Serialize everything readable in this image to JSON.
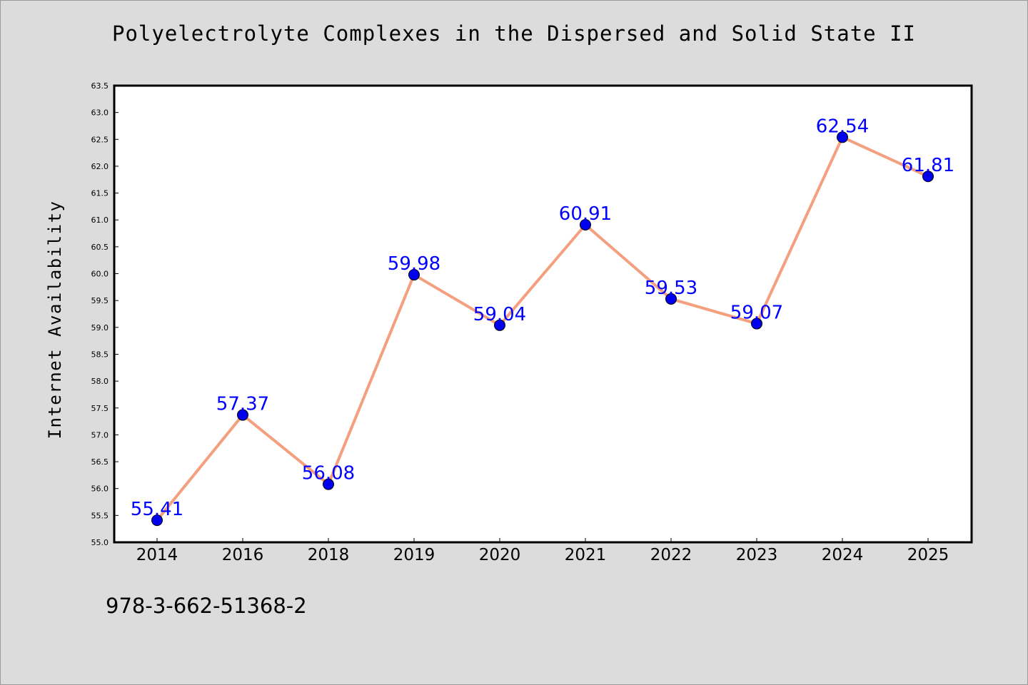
{
  "chart_data": {
    "type": "line",
    "title": "Polyelectrolyte Complexes in the Dispersed and Solid State II",
    "xlabel": "",
    "ylabel": "Internet Availability",
    "categories": [
      "2014",
      "2016",
      "2018",
      "2019",
      "2020",
      "2021",
      "2022",
      "2023",
      "2024",
      "2025"
    ],
    "series": [
      {
        "values": [
          55.41,
          57.37,
          56.08,
          59.98,
          59.04,
          60.91,
          59.53,
          59.07,
          62.54,
          61.81
        ],
        "line_color": "#f4a07e",
        "marker_color": "#0000ee"
      }
    ],
    "data_labels": [
      "55.41",
      "57.37",
      "56.08",
      "59.98",
      "59.04",
      "60.91",
      "59.53",
      "59.07",
      "62.54",
      "61.81"
    ],
    "ylim": [
      55.0,
      63.5
    ],
    "yticks": [
      "55.0",
      "55.5",
      "56.0",
      "56.5",
      "57.0",
      "57.5",
      "58.0",
      "58.5",
      "59.0",
      "59.5",
      "60.0",
      "60.5",
      "61.0",
      "61.5",
      "62.0",
      "62.5",
      "63.0",
      "63.5"
    ],
    "grid": false,
    "label_color": "#0000ff"
  },
  "footer": {
    "isbn": "978-3-662-51368-2"
  }
}
